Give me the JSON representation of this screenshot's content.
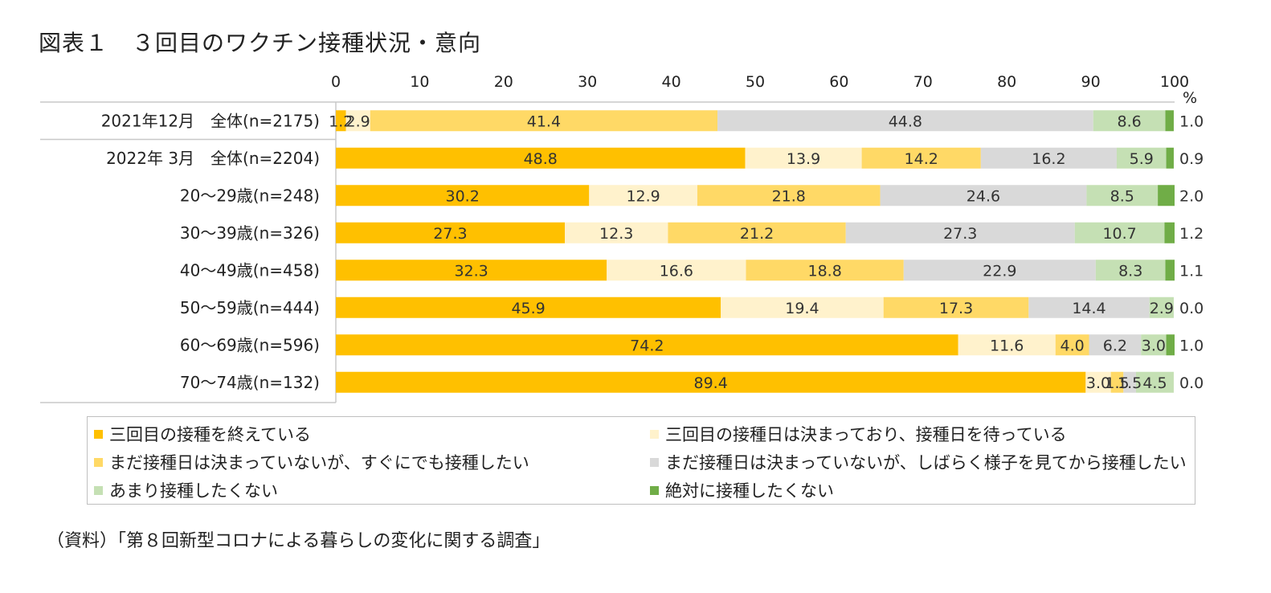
{
  "title": "図表１　３回目のワクチン接種状況・意向",
  "source": "（資料）「第８回新型コロナによる暮らしの変化に関する調査」",
  "chart_data": {
    "type": "bar",
    "orientation": "horizontal",
    "stacked": true,
    "xlim": [
      0,
      100
    ],
    "x_ticks": [
      0,
      10,
      20,
      30,
      40,
      50,
      60,
      70,
      80,
      90,
      100
    ],
    "unit_label": "%",
    "categories": [
      "2021年12月　全体(n=2175)",
      "2022年 3月　全体(n=2204)",
      "20〜29歳(n=248)",
      "30〜39歳(n=326)",
      "40〜49歳(n=458)",
      "50〜59歳(n=444)",
      "60〜69歳(n=596)",
      "70〜74歳(n=132)"
    ],
    "series": [
      {
        "name": "三回目の接種を終えている",
        "color": "#FFC000",
        "values": [
          1.2,
          48.8,
          30.2,
          27.3,
          32.3,
          45.9,
          74.2,
          89.4
        ]
      },
      {
        "name": "三回目の接種日は決まっており、接種日を待っている",
        "color": "#FFF2CC",
        "values": [
          2.9,
          13.9,
          12.9,
          12.3,
          16.6,
          19.4,
          11.6,
          3.0
        ]
      },
      {
        "name": "まだ接種日は決まっていないが、すぐにでも接種したい",
        "color": "#FFD966",
        "values": [
          41.4,
          14.2,
          21.8,
          21.2,
          18.8,
          17.3,
          4.0,
          1.5
        ]
      },
      {
        "name": "まだ接種日は決まっていないが、しばらく様子を見てから接種したい",
        "color": "#D9D9D9",
        "values": [
          44.8,
          16.2,
          24.6,
          27.3,
          22.9,
          14.4,
          6.2,
          1.5
        ]
      },
      {
        "name": "あまり接種したくない",
        "color": "#C5E0B4",
        "values": [
          8.6,
          5.9,
          8.5,
          10.7,
          8.3,
          2.9,
          3.0,
          4.5
        ]
      },
      {
        "name": "絶対に接種したくない",
        "color": "#70AD47",
        "values": [
          1.0,
          0.9,
          2.0,
          1.2,
          1.1,
          0.0,
          1.0,
          0.0
        ]
      }
    ],
    "legend_position": "bottom",
    "grid": false
  }
}
